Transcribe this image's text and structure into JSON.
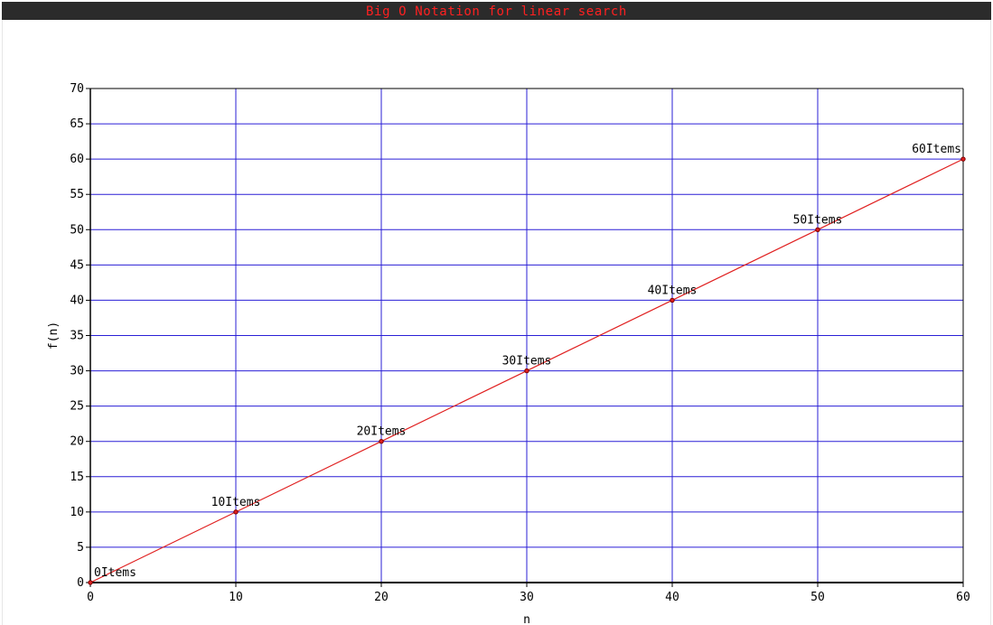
{
  "window": {
    "title": "Big O Notation for linear search"
  },
  "colors": {
    "title_text": "#ff2020",
    "title_bar": "#2b2b2b",
    "grid": "#2a1fd6",
    "line": "#e02020",
    "marker_stroke": "#7a0000",
    "axis": "#000000"
  },
  "chart_data": {
    "type": "line",
    "title": "Big O Notation for linear search",
    "xlabel": "n",
    "ylabel": "f(n)",
    "xlim": [
      0,
      60
    ],
    "ylim": [
      0,
      70
    ],
    "xticks": [
      0,
      10,
      20,
      30,
      40,
      50,
      60
    ],
    "yticks": [
      0,
      5,
      10,
      15,
      20,
      25,
      30,
      35,
      40,
      45,
      50,
      55,
      60,
      65,
      70
    ],
    "grid": true,
    "series": [
      {
        "x": [
          0,
          10,
          20,
          30,
          40,
          50,
          60
        ],
        "y": [
          0,
          10,
          20,
          30,
          40,
          50,
          60
        ],
        "point_labels": [
          "0Items",
          "10Items",
          "20Items",
          "30Items",
          "40Items",
          "50Items",
          "60Items"
        ]
      }
    ]
  }
}
